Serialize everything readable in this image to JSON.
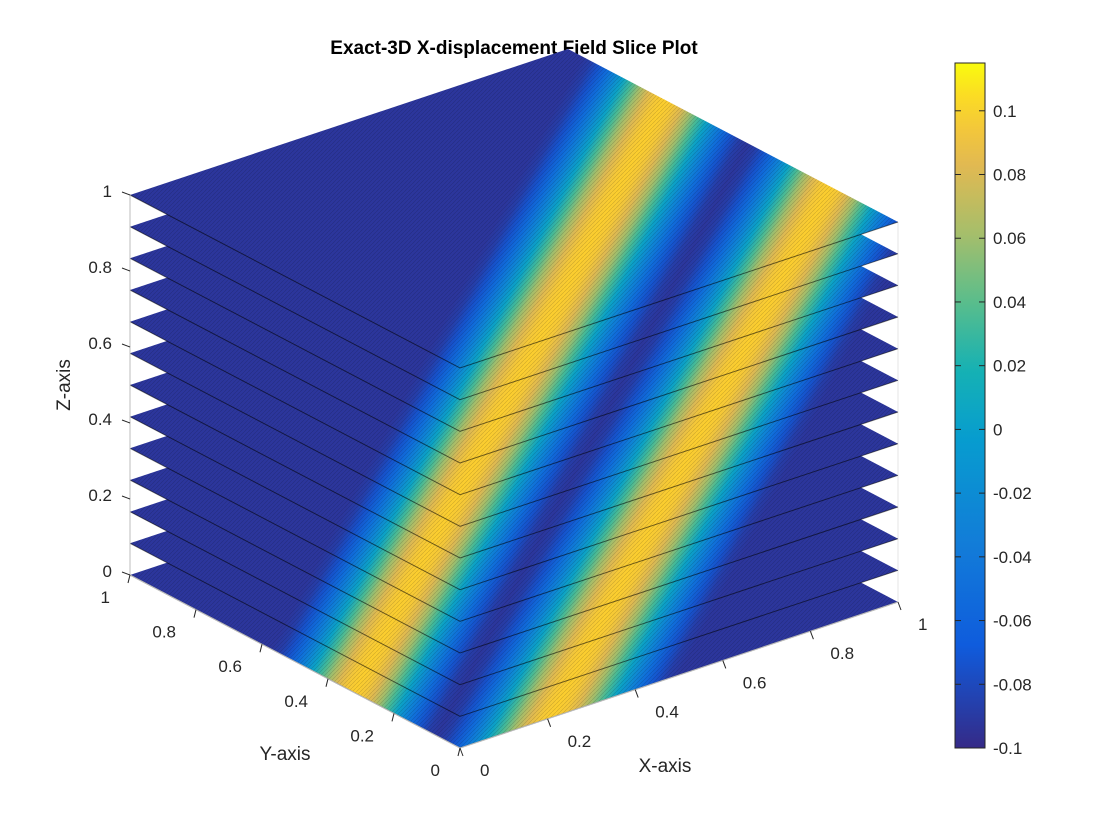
{
  "chart_data": {
    "type": "slice-surface-3d",
    "title": "Exact-3D X-displacement Field Slice Plot",
    "xlabel": "X-axis",
    "ylabel": "Y-axis",
    "zlabel": "Z-axis",
    "xlim": [
      0,
      1
    ],
    "ylim": [
      0,
      1
    ],
    "zlim": [
      0,
      1
    ],
    "x_ticks": [
      "0",
      "0.2",
      "0.4",
      "0.6",
      "0.8",
      "1"
    ],
    "y_ticks": [
      "0",
      "0.2",
      "0.4",
      "0.6",
      "0.8",
      "1"
    ],
    "z_ticks": [
      "0",
      "0.2",
      "0.4",
      "0.6",
      "0.8",
      "1"
    ],
    "slice_z_values": [
      0,
      0.0833,
      0.1667,
      0.25,
      0.3333,
      0.4167,
      0.5,
      0.5833,
      0.6667,
      0.75,
      0.8333,
      0.9167,
      1
    ],
    "colormap": "parula",
    "colorbar": {
      "limits": [
        -0.1,
        0.115
      ],
      "ticks": [
        "0.1",
        "0.08",
        "0.06",
        "0.04",
        "0.02",
        "0",
        "-0.02",
        "-0.04",
        "-0.06",
        "-0.08",
        "-0.1"
      ],
      "tick_values": [
        0.1,
        0.08,
        0.06,
        0.04,
        0.02,
        0,
        -0.02,
        -0.04,
        -0.06,
        -0.08,
        -0.1
      ]
    },
    "grid": true
  }
}
